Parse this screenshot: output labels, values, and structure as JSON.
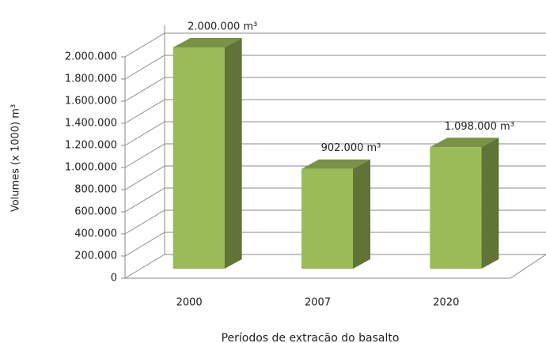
{
  "chart_data": {
    "type": "bar",
    "xlabel": "Períodos de extracão do basalto",
    "ylabel": "Volumes (x 1000) m³",
    "categories": [
      "2000",
      "2007",
      "2020"
    ],
    "values": [
      2000000,
      902000,
      1098000
    ],
    "value_labels": [
      "2.000.000 m³",
      "902.000 m³",
      "1.098.000 m³"
    ],
    "color": "#9bbb59",
    "ylim": [
      0,
      2000000
    ],
    "yticks": [
      0,
      {
        "value": 200000,
        "label": "200.000"
      },
      {
        "value": 400000,
        "label": "400.000"
      },
      {
        "value": 600000,
        "label": "600.000"
      },
      {
        "value": 800000,
        "label": "800.000"
      },
      {
        "value": 1000000,
        "label": "1.000.000"
      },
      {
        "value": 1200000,
        "label": "1.200.000"
      },
      {
        "value": 1400000,
        "label": "1.400.000"
      },
      {
        "value": 1600000,
        "label": "1.600.000"
      },
      {
        "value": 1800000,
        "label": "1.800.000"
      },
      {
        "value": 2000000,
        "label": "2.000.000"
      }
    ],
    "grid": true
  }
}
